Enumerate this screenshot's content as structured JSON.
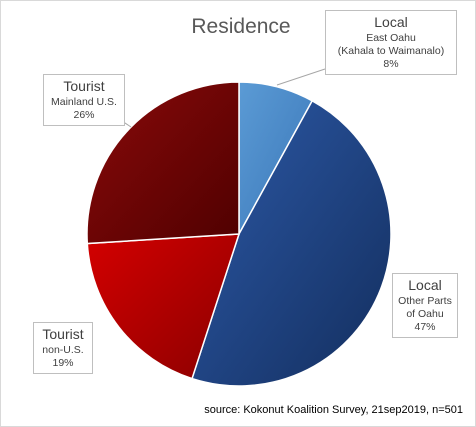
{
  "chart_data": {
    "type": "pie",
    "title": "Residence",
    "slices": [
      {
        "group": "Local",
        "label": "East Oahu",
        "sublabel": "(Kahala to Waimanalo)",
        "value": 8,
        "pct": "8%",
        "color": "#4f8fd0"
      },
      {
        "group": "Local",
        "label": "Other Parts",
        "sublabel": "of Oahu",
        "value": 47,
        "pct": "47%",
        "color": "#1d3f7e"
      },
      {
        "group": "Tourist",
        "label": "non-U.S.",
        "sublabel": "",
        "value": 19,
        "pct": "19%",
        "color": "#b00000"
      },
      {
        "group": "Tourist",
        "label": "Mainland U.S.",
        "sublabel": "",
        "value": 26,
        "pct": "26%",
        "color": "#700000"
      }
    ],
    "source": "source: Kokonut Koalition Survey, 21sep2019, n=501"
  }
}
